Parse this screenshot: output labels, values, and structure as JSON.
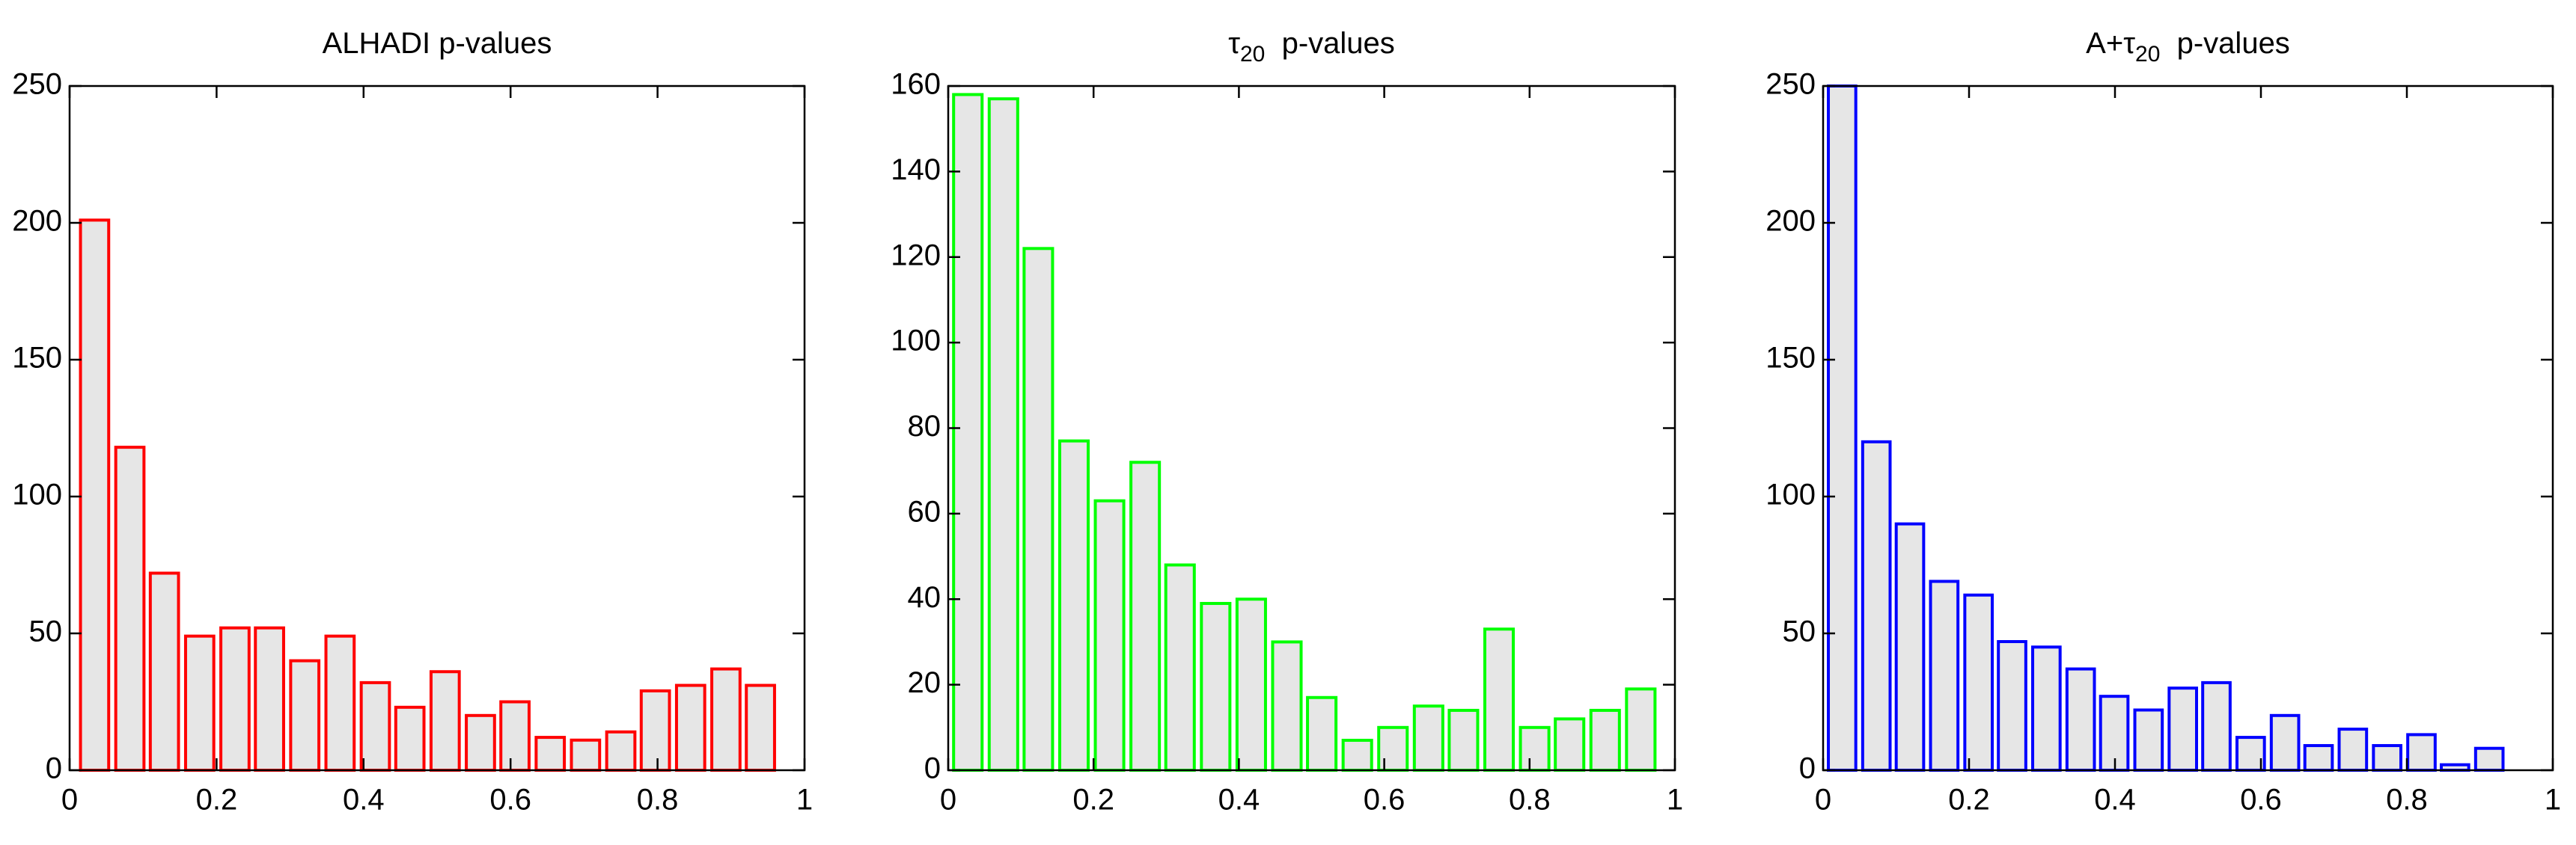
{
  "chart_data": [
    {
      "type": "bar",
      "title": [
        {
          "text": "ALHADI p-values"
        }
      ],
      "x": [
        0.034,
        0.082,
        0.129,
        0.177,
        0.225,
        0.272,
        0.32,
        0.368,
        0.416,
        0.463,
        0.511,
        0.559,
        0.606,
        0.654,
        0.702,
        0.75,
        0.797,
        0.845,
        0.893,
        0.94
      ],
      "values": [
        201,
        118,
        72,
        49,
        52,
        52,
        40,
        49,
        32,
        23,
        36,
        20,
        25,
        12,
        11,
        14,
        29,
        31,
        37,
        31
      ],
      "color": "#ff0000",
      "fill": "#e6e6e6",
      "xlim": [
        0,
        1
      ],
      "xticks": [
        0,
        0.2,
        0.4,
        0.6,
        0.8,
        1
      ],
      "ylim": [
        0,
        250
      ],
      "yticks": [
        0,
        50,
        100,
        150,
        200,
        250
      ]
    },
    {
      "type": "bar",
      "title": [
        {
          "text": "τ"
        },
        {
          "text": "20",
          "sub": true
        },
        {
          "text": "  p-values"
        }
      ],
      "x": [
        0.027,
        0.076,
        0.124,
        0.173,
        0.222,
        0.271,
        0.319,
        0.368,
        0.417,
        0.466,
        0.514,
        0.563,
        0.612,
        0.661,
        0.709,
        0.758,
        0.807,
        0.855,
        0.904,
        0.953
      ],
      "values": [
        158,
        157,
        122,
        77,
        63,
        72,
        48,
        39,
        40,
        30,
        17,
        7,
        10,
        15,
        14,
        33,
        10,
        12,
        14,
        19
      ],
      "color": "#00ff00",
      "fill": "#e6e6e6",
      "xlim": [
        0,
        1
      ],
      "xticks": [
        0,
        0.2,
        0.4,
        0.6,
        0.8,
        1
      ],
      "ylim": [
        0,
        160
      ],
      "yticks": [
        0,
        20,
        40,
        60,
        80,
        100,
        120,
        140,
        160
      ]
    },
    {
      "type": "bar",
      "title": [
        {
          "text": "A+τ"
        },
        {
          "text": "20",
          "sub": true
        },
        {
          "text": "  p-values"
        }
      ],
      "x": [
        0.026,
        0.073,
        0.119,
        0.166,
        0.213,
        0.259,
        0.306,
        0.353,
        0.399,
        0.446,
        0.493,
        0.539,
        0.586,
        0.633,
        0.679,
        0.726,
        0.773,
        0.82,
        0.866,
        0.913
      ],
      "values": [
        250,
        120,
        90,
        69,
        64,
        47,
        45,
        37,
        27,
        22,
        30,
        32,
        12,
        20,
        9,
        15,
        9,
        13,
        2,
        8
      ],
      "color": "#0000ff",
      "fill": "#e6e6e6",
      "xlim": [
        0,
        1
      ],
      "xticks": [
        0,
        0.2,
        0.4,
        0.6,
        0.8,
        1
      ],
      "ylim": [
        0,
        250
      ],
      "yticks": [
        0,
        50,
        100,
        150,
        200,
        250
      ]
    }
  ]
}
